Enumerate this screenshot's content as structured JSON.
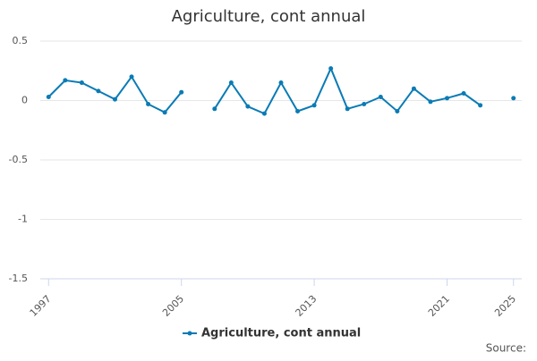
{
  "chart_data": {
    "type": "line",
    "title": "Agriculture, cont annual",
    "x": [
      1997,
      1998,
      1999,
      2000,
      2001,
      2002,
      2003,
      2004,
      2005,
      2006,
      2007,
      2008,
      2009,
      2010,
      2011,
      2012,
      2013,
      2014,
      2015,
      2016,
      2017,
      2018,
      2019,
      2020,
      2021,
      2022,
      2023,
      2024,
      2025
    ],
    "series": [
      {
        "name": "Agriculture, cont annual",
        "color": "#0a7bb5",
        "values": [
          0.03,
          0.17,
          0.15,
          0.08,
          0.01,
          0.2,
          -0.03,
          -0.1,
          0.07,
          null,
          -0.07,
          0.15,
          -0.05,
          -0.11,
          0.15,
          -0.09,
          -0.04,
          0.27,
          -0.07,
          -0.03,
          0.03,
          -0.09,
          0.1,
          -0.01,
          0.02,
          0.06,
          -0.04,
          null,
          0.02
        ]
      }
    ],
    "xlim": [
      1996.5,
      2025.5
    ],
    "xticks": [
      1997,
      2005,
      2013,
      2021,
      2025
    ],
    "ylim": [
      -1.5,
      0.5
    ],
    "yticks": [
      0.5,
      0,
      -0.5,
      -1,
      -1.5
    ],
    "grid": true,
    "source": "Source:"
  }
}
